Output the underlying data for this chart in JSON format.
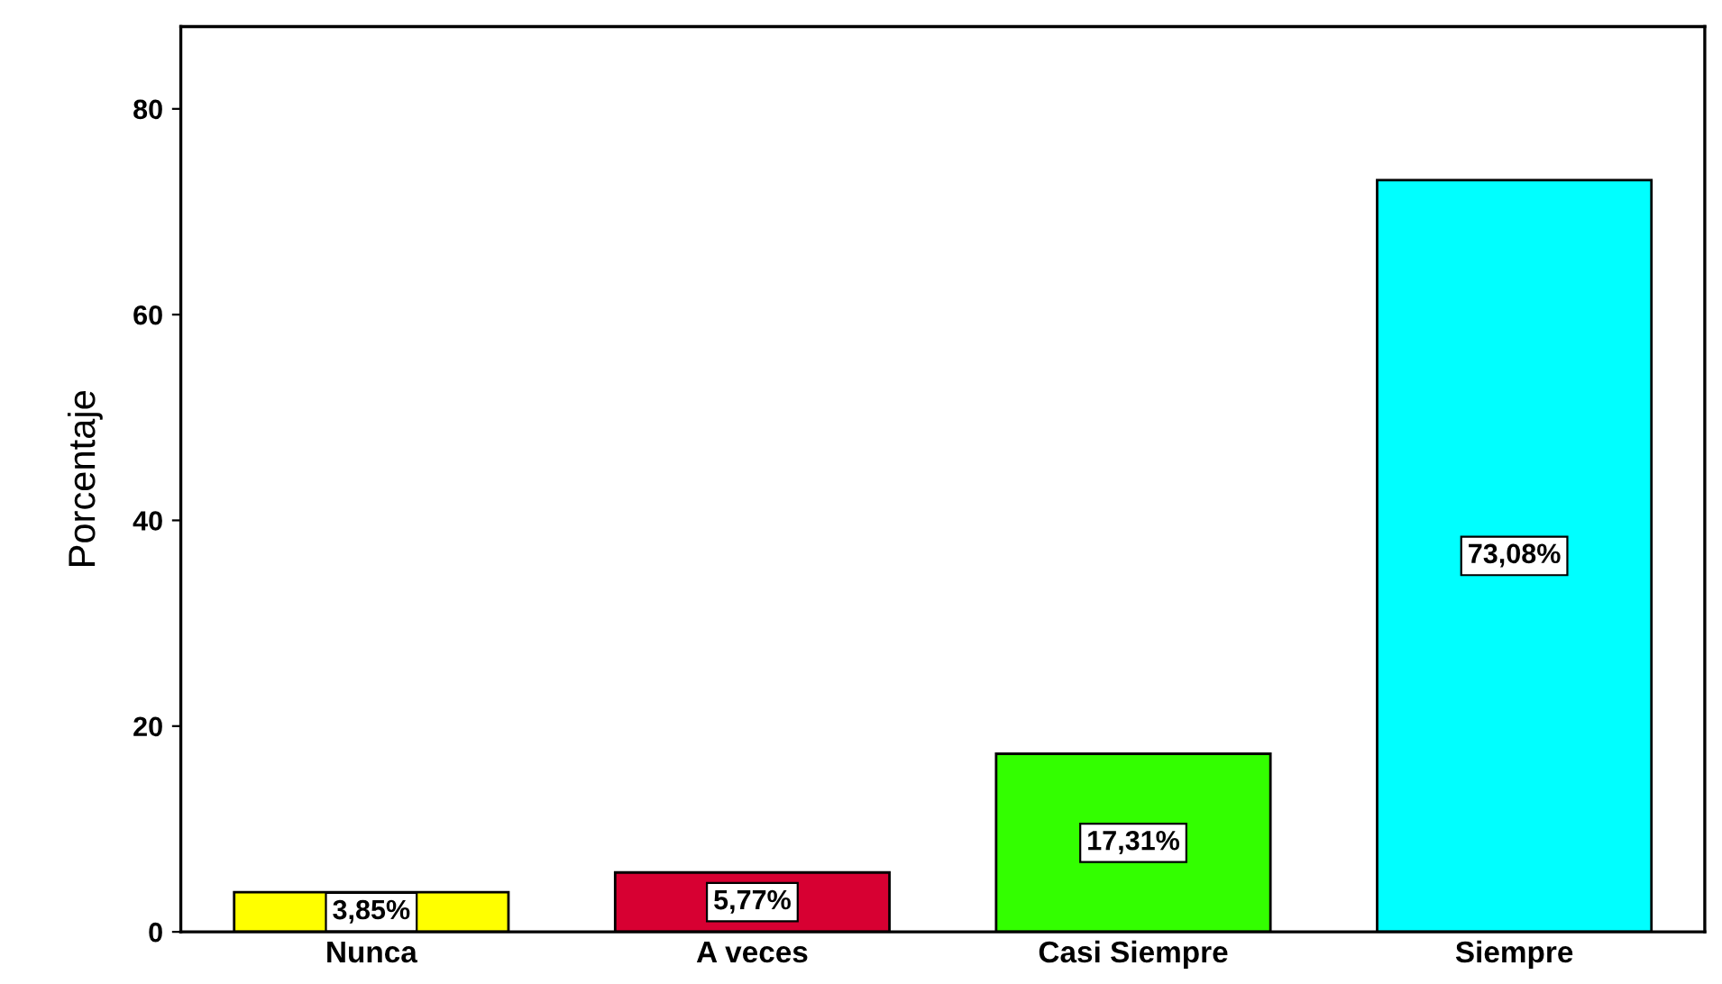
{
  "chart_data": {
    "type": "bar",
    "ylabel": "Porcentaje",
    "categories": [
      "Nunca",
      "A veces",
      "Casi Siempre",
      "Siempre"
    ],
    "values": [
      3.85,
      5.77,
      17.31,
      73.08
    ],
    "colors": [
      "#ffff00",
      "#d70032",
      "#33ff00",
      "#00ffff"
    ],
    "value_labels": [
      "3,85%",
      "5,77%",
      "17,31%",
      "73,08%"
    ],
    "ylim": [
      0,
      88
    ],
    "yticks": [
      0,
      20,
      40,
      60,
      80
    ],
    "grid": false
  }
}
